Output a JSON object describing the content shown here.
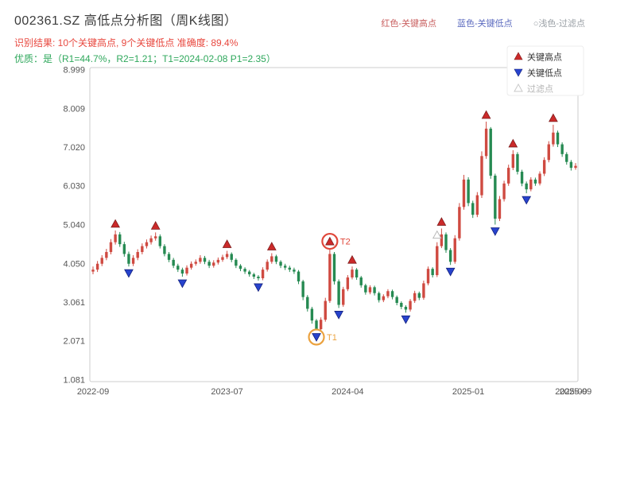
{
  "header": {
    "title": "002361.SZ 高低点分析图（周K线图）",
    "legend_top": [
      {
        "label": "红色-关键高点",
        "color": "#c96060"
      },
      {
        "label": "蓝色-关键低点",
        "color": "#5b6abf"
      },
      {
        "label": "○浅色-过滤点",
        "color": "#9aa0a6"
      }
    ],
    "result_line": "识别结果: 10个关键高点, 9个关键低点  准确度: 89.4%",
    "quality_line": "优质：是（R1=44.7%，R2=1.21；T1=2024-02-08 P1=2.35）",
    "colors": {
      "result": "#e8483f",
      "quality": "#2fa85c"
    }
  },
  "chart_data": {
    "type": "candlestick",
    "title": "002361.SZ 高低点分析图（周K线图）",
    "interval": "weekly",
    "x_axis": {
      "ticks": [
        {
          "i": 0,
          "label": "2022-09"
        },
        {
          "i": 30,
          "label": "2023-07"
        },
        {
          "i": 57,
          "label": "2024-04"
        },
        {
          "i": 84,
          "label": "2025-01"
        },
        {
          "i": 107,
          "label": "2025-09"
        },
        {
          "i": 108,
          "label": "2025-09"
        }
      ]
    },
    "y_axis": {
      "min": 1.081,
      "max": 8.999,
      "ticks": [
        {
          "value": 1.081,
          "label": "1.081"
        },
        {
          "value": 2.071,
          "label": "2.071"
        },
        {
          "value": 3.061,
          "label": "3.061"
        },
        {
          "value": 4.05,
          "label": "4.050"
        },
        {
          "value": 5.04,
          "label": "5.040"
        },
        {
          "value": 6.03,
          "label": "6.030"
        },
        {
          "value": 7.02,
          "label": "7.020"
        },
        {
          "value": 8.009,
          "label": "8.009"
        },
        {
          "value": 8.999,
          "label": "8.999"
        }
      ]
    },
    "candles": [
      [
        3.85,
        3.98,
        3.78,
        3.9
      ],
      [
        3.9,
        4.12,
        3.84,
        4.05
      ],
      [
        4.05,
        4.27,
        3.99,
        4.2
      ],
      [
        4.2,
        4.43,
        4.14,
        4.35
      ],
      [
        4.35,
        4.68,
        4.29,
        4.6
      ],
      [
        4.6,
        4.9,
        4.54,
        4.8
      ],
      [
        4.8,
        4.86,
        4.48,
        4.55
      ],
      [
        4.55,
        4.61,
        4.23,
        4.3
      ],
      [
        4.3,
        4.36,
        3.98,
        4.05
      ],
      [
        4.05,
        4.27,
        3.99,
        4.2
      ],
      [
        4.2,
        4.42,
        4.14,
        4.35
      ],
      [
        4.35,
        4.57,
        4.29,
        4.5
      ],
      [
        4.5,
        4.67,
        4.44,
        4.6
      ],
      [
        4.6,
        4.77,
        4.54,
        4.7
      ],
      [
        4.7,
        4.85,
        4.64,
        4.75
      ],
      [
        4.75,
        4.8,
        4.44,
        4.5
      ],
      [
        4.5,
        4.55,
        4.24,
        4.3
      ],
      [
        4.3,
        4.35,
        4.09,
        4.15
      ],
      [
        4.15,
        4.2,
        3.94,
        4.0
      ],
      [
        4.0,
        4.05,
        3.84,
        3.9
      ],
      [
        3.9,
        3.95,
        3.72,
        3.8
      ],
      [
        3.8,
        4.01,
        3.75,
        3.95
      ],
      [
        3.95,
        4.11,
        3.9,
        4.05
      ],
      [
        4.05,
        4.16,
        4.0,
        4.1
      ],
      [
        4.1,
        4.27,
        4.05,
        4.2
      ],
      [
        4.2,
        4.25,
        4.04,
        4.1
      ],
      [
        4.1,
        4.15,
        3.94,
        4.0
      ],
      [
        4.0,
        4.14,
        3.95,
        4.08
      ],
      [
        4.08,
        4.21,
        4.03,
        4.15
      ],
      [
        4.15,
        4.28,
        4.1,
        4.22
      ],
      [
        4.22,
        4.38,
        4.17,
        4.3
      ],
      [
        4.3,
        4.34,
        4.09,
        4.15
      ],
      [
        4.15,
        4.19,
        3.94,
        4.0
      ],
      [
        4.0,
        4.04,
        3.86,
        3.92
      ],
      [
        3.92,
        3.96,
        3.79,
        3.85
      ],
      [
        3.85,
        3.89,
        3.72,
        3.78
      ],
      [
        3.78,
        3.82,
        3.66,
        3.72
      ],
      [
        3.72,
        3.76,
        3.62,
        3.68
      ],
      [
        3.68,
        3.96,
        3.63,
        3.9
      ],
      [
        3.9,
        4.16,
        3.85,
        4.1
      ],
      [
        4.1,
        4.32,
        4.05,
        4.24
      ],
      [
        4.24,
        4.28,
        4.04,
        4.1
      ],
      [
        4.1,
        4.14,
        3.94,
        4.0
      ],
      [
        4.0,
        4.05,
        3.89,
        3.95
      ],
      [
        3.95,
        4.0,
        3.84,
        3.9
      ],
      [
        3.9,
        3.95,
        3.79,
        3.85
      ],
      [
        3.85,
        3.89,
        3.53,
        3.6
      ],
      [
        3.6,
        3.64,
        3.12,
        3.2
      ],
      [
        3.2,
        3.25,
        2.83,
        2.9
      ],
      [
        2.9,
        2.95,
        2.52,
        2.6
      ],
      [
        2.6,
        2.64,
        2.35,
        2.38
      ],
      [
        2.38,
        2.68,
        2.33,
        2.62
      ],
      [
        2.62,
        3.18,
        2.57,
        3.1
      ],
      [
        3.1,
        4.45,
        3.05,
        4.3
      ],
      [
        4.3,
        4.35,
        3.52,
        3.6
      ],
      [
        3.6,
        3.65,
        2.92,
        3.0
      ],
      [
        3.0,
        3.46,
        2.95,
        3.4
      ],
      [
        3.4,
        3.76,
        3.35,
        3.7
      ],
      [
        3.7,
        3.98,
        3.65,
        3.9
      ],
      [
        3.9,
        3.94,
        3.64,
        3.7
      ],
      [
        3.7,
        3.74,
        3.44,
        3.5
      ],
      [
        3.5,
        3.54,
        3.26,
        3.32
      ],
      [
        3.32,
        3.5,
        3.27,
        3.45
      ],
      [
        3.45,
        3.49,
        3.24,
        3.3
      ],
      [
        3.3,
        3.34,
        3.06,
        3.12
      ],
      [
        3.12,
        3.27,
        3.07,
        3.22
      ],
      [
        3.22,
        3.4,
        3.17,
        3.35
      ],
      [
        3.35,
        3.39,
        3.14,
        3.2
      ],
      [
        3.2,
        3.24,
        2.99,
        3.05
      ],
      [
        3.05,
        3.09,
        2.89,
        2.95
      ],
      [
        2.95,
        2.99,
        2.8,
        2.88
      ],
      [
        2.88,
        3.15,
        2.83,
        3.1
      ],
      [
        3.1,
        3.36,
        3.05,
        3.3
      ],
      [
        3.3,
        3.34,
        3.12,
        3.18
      ],
      [
        3.18,
        3.62,
        3.13,
        3.55
      ],
      [
        3.55,
        3.98,
        3.5,
        3.92
      ],
      [
        3.92,
        3.96,
        3.7,
        3.76
      ],
      [
        3.76,
        4.6,
        3.71,
        4.5
      ],
      [
        4.5,
        4.95,
        4.45,
        4.8
      ],
      [
        4.8,
        4.85,
        4.33,
        4.4
      ],
      [
        4.4,
        4.45,
        4.02,
        4.1
      ],
      [
        4.1,
        4.78,
        4.05,
        4.7
      ],
      [
        4.7,
        5.6,
        4.64,
        5.5
      ],
      [
        5.5,
        6.32,
        5.43,
        6.2
      ],
      [
        6.2,
        6.26,
        5.52,
        5.6
      ],
      [
        5.6,
        5.66,
        5.22,
        5.3
      ],
      [
        5.3,
        5.88,
        5.24,
        5.8
      ],
      [
        5.8,
        6.92,
        5.73,
        6.8
      ],
      [
        6.8,
        7.68,
        6.73,
        7.5
      ],
      [
        7.5,
        7.54,
        6.22,
        6.3
      ],
      [
        6.3,
        6.35,
        5.05,
        5.2
      ],
      [
        5.2,
        5.78,
        5.14,
        5.7
      ],
      [
        5.7,
        6.17,
        5.64,
        6.1
      ],
      [
        6.1,
        6.58,
        6.04,
        6.5
      ],
      [
        6.5,
        6.95,
        6.44,
        6.85
      ],
      [
        6.85,
        6.9,
        6.33,
        6.4
      ],
      [
        6.4,
        6.45,
        6.03,
        6.1
      ],
      [
        6.1,
        6.15,
        5.85,
        5.95
      ],
      [
        5.95,
        6.26,
        5.9,
        6.2
      ],
      [
        6.2,
        6.25,
        6.04,
        6.1
      ],
      [
        6.1,
        6.41,
        6.05,
        6.35
      ],
      [
        6.35,
        6.77,
        6.29,
        6.7
      ],
      [
        6.7,
        7.18,
        6.64,
        7.1
      ],
      [
        7.1,
        7.6,
        7.04,
        7.4
      ],
      [
        7.4,
        7.45,
        7.03,
        7.1
      ],
      [
        7.1,
        7.15,
        6.78,
        6.85
      ],
      [
        6.85,
        6.9,
        6.58,
        6.65
      ],
      [
        6.65,
        6.7,
        6.43,
        6.5
      ],
      [
        6.5,
        6.62,
        6.45,
        6.55
      ]
    ],
    "key_highs": [
      {
        "i": 5,
        "p": 4.9
      },
      {
        "i": 14,
        "p": 4.85
      },
      {
        "i": 30,
        "p": 4.38
      },
      {
        "i": 40,
        "p": 4.32
      },
      {
        "i": 53,
        "p": 4.45
      },
      {
        "i": 58,
        "p": 3.98
      },
      {
        "i": 78,
        "p": 4.95
      },
      {
        "i": 88,
        "p": 7.68
      },
      {
        "i": 94,
        "p": 6.95
      },
      {
        "i": 103,
        "p": 7.6
      }
    ],
    "key_lows": [
      {
        "i": 8,
        "p": 3.98
      },
      {
        "i": 20,
        "p": 3.72
      },
      {
        "i": 37,
        "p": 3.62
      },
      {
        "i": 50,
        "p": 2.35
      },
      {
        "i": 55,
        "p": 2.92
      },
      {
        "i": 70,
        "p": 2.8
      },
      {
        "i": 80,
        "p": 4.02
      },
      {
        "i": 90,
        "p": 5.05
      },
      {
        "i": 97,
        "p": 5.85
      }
    ],
    "filtered_points": [
      {
        "i": 77,
        "p": 4.62
      }
    ],
    "annotations": [
      {
        "label": "T2",
        "i": 53,
        "at": "high",
        "p": 4.45,
        "color": "#e0473a"
      },
      {
        "label": "T1",
        "i": 50,
        "at": "low",
        "p": 2.35,
        "color": "#eba23f"
      }
    ],
    "legend": [
      {
        "label": "关键高点",
        "marker": "triangle-up",
        "color": "#cb2a2a",
        "text_color": "#333333"
      },
      {
        "label": "关键低点",
        "marker": "triangle-down",
        "color": "#2743cd",
        "text_color": "#333333"
      },
      {
        "label": "过滤点",
        "marker": "triangle-up-outline",
        "color": "#c9c9c9",
        "text_color": "#b5b5b5"
      }
    ],
    "colors": {
      "up": "#cf4a41",
      "down": "#268a52",
      "marker_high": "#cb2a2a",
      "marker_low": "#2743cd"
    }
  }
}
